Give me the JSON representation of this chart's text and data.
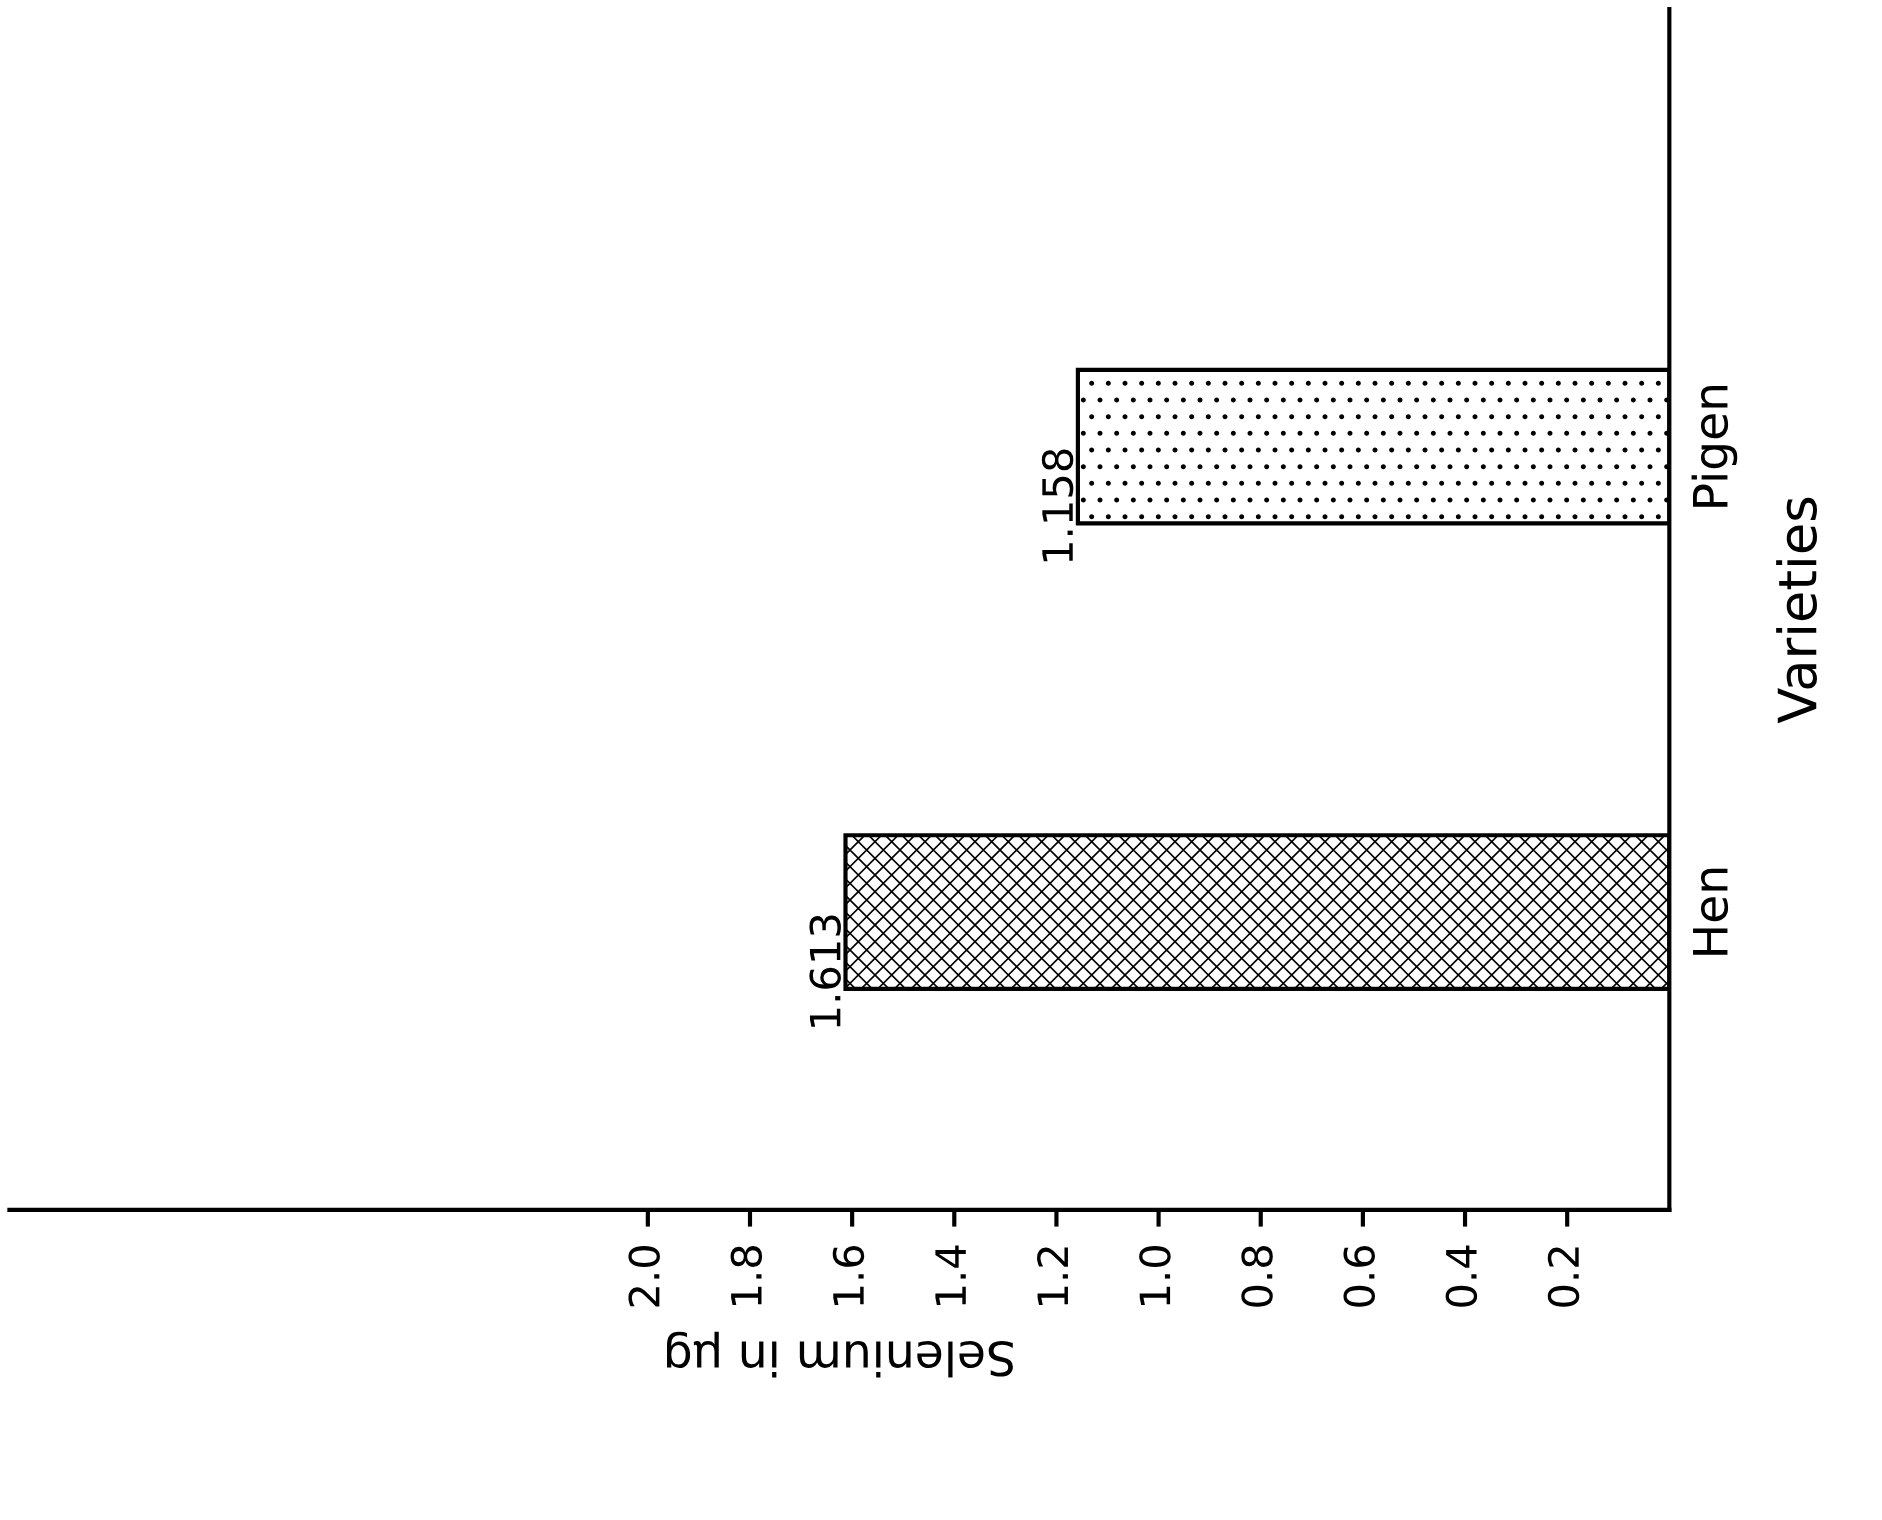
{
  "chart_data": {
    "type": "bar",
    "orientation": "horizontal",
    "categories": [
      "Pigen",
      "Hen"
    ],
    "values": [
      1.158,
      1.613
    ],
    "data_labels": true,
    "xlabel": "Selenium in μg",
    "ylabel": "Varieties",
    "xlim": [
      3.25,
      0
    ],
    "xticks": [
      0.2,
      0.4,
      0.6,
      0.8,
      {
        "value": 1,
        "label": "1.0"
      },
      1.2,
      1.4,
      1.6,
      1.8,
      {
        "value": 2,
        "label": "2.0"
      }
    ],
    "grid": false,
    "legend": false
  }
}
